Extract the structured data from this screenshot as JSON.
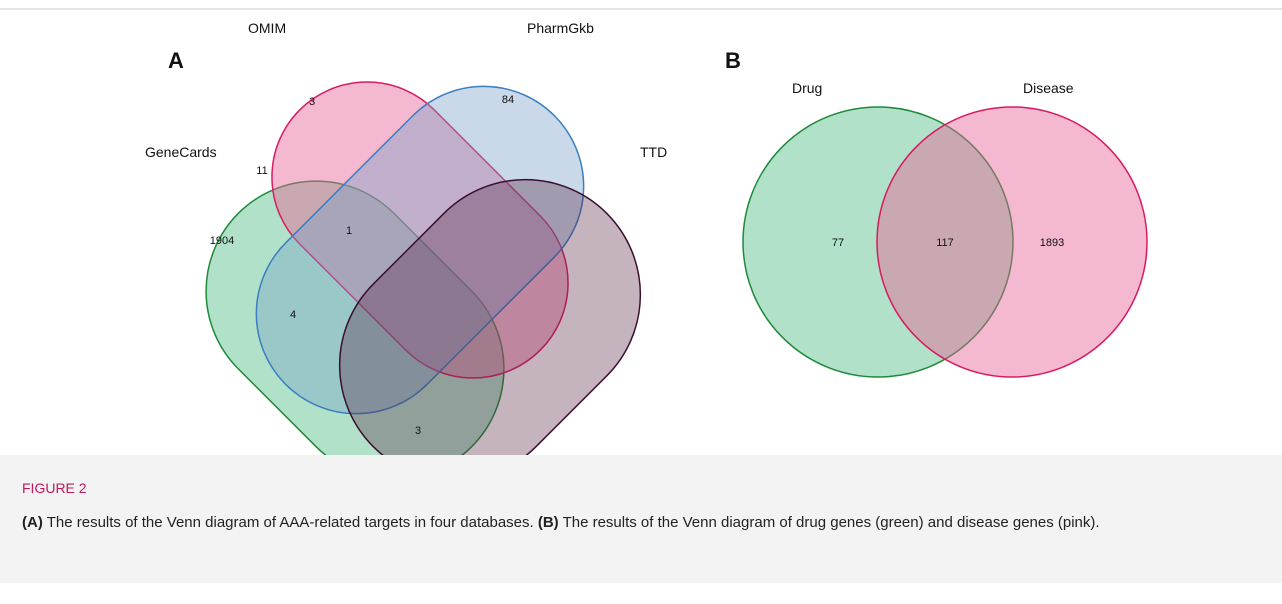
{
  "panels": [
    {
      "label": "A",
      "sets": [
        "OMIM",
        "PharmGkb",
        "GeneCards",
        "TTD"
      ],
      "regions": [
        3,
        84,
        11,
        1904,
        1,
        4,
        3
      ]
    },
    {
      "label": "B",
      "sets": [
        "Drug",
        "Disease"
      ],
      "regions": [
        77,
        117,
        1893
      ]
    }
  ],
  "caption": {
    "figure": "FIGURE 2",
    "parts": [
      {
        "label": "(A)",
        "text": " The results of the Venn diagram of AAA-related targets in four databases. "
      },
      {
        "label": "(B)",
        "text": " The results of the Venn diagram of drug genes (green) and disease genes (pink)."
      }
    ]
  }
}
